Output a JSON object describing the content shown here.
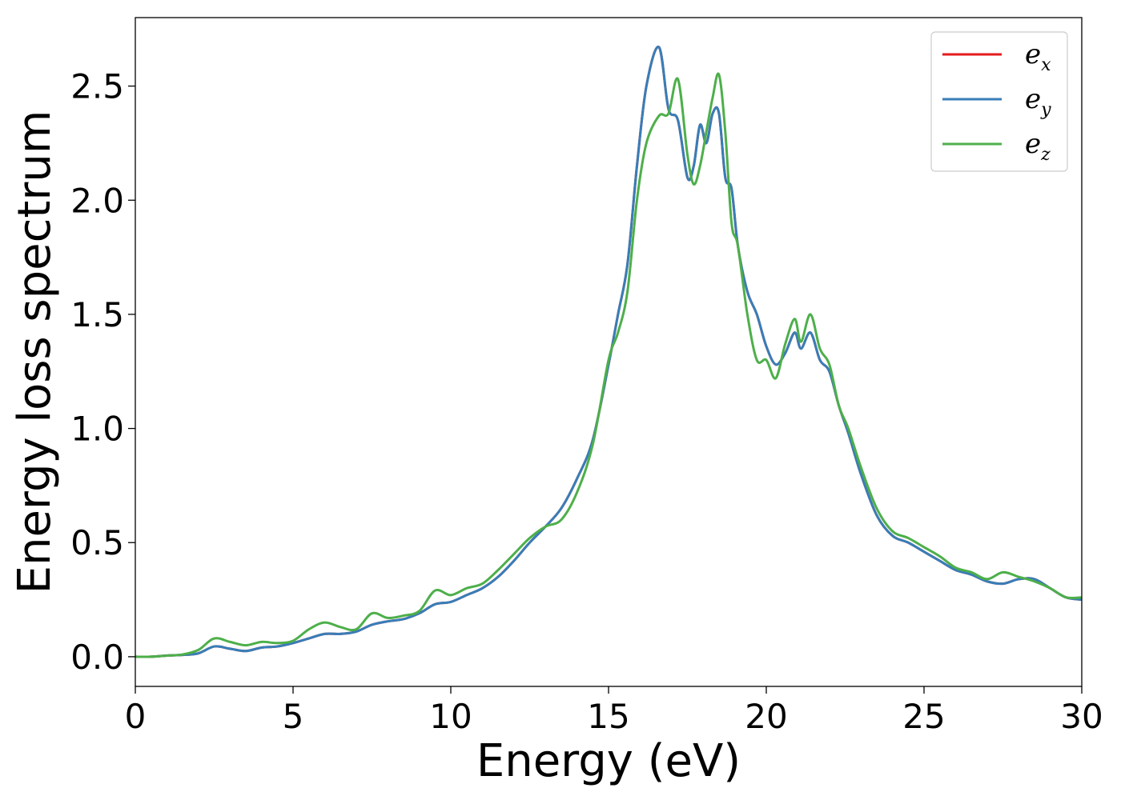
{
  "chart_data": {
    "type": "line",
    "title": "",
    "xlabel": "Energy (eV)",
    "ylabel": "Energy loss spectrum",
    "xlim": [
      0,
      30
    ],
    "ylim": [
      -0.13,
      2.8
    ],
    "xticks": [
      0,
      5,
      10,
      15,
      20,
      25,
      30
    ],
    "yticks": [
      0.0,
      0.5,
      1.0,
      1.5,
      2.0,
      2.5
    ],
    "xtick_labels": [
      "0",
      "5",
      "10",
      "15",
      "20",
      "25",
      "30"
    ],
    "ytick_labels": [
      "0.0",
      "0.5",
      "1.0",
      "1.5",
      "2.0",
      "2.5"
    ],
    "grid": false,
    "legend_position": "top-right",
    "x": [
      0,
      0.5,
      1.0,
      1.5,
      2.0,
      2.5,
      3.0,
      3.5,
      4.0,
      4.5,
      5.0,
      5.5,
      6.0,
      6.5,
      7.0,
      7.5,
      8.0,
      8.5,
      9.0,
      9.5,
      10.0,
      10.5,
      11.0,
      11.5,
      12.0,
      12.5,
      13.0,
      13.5,
      14.0,
      14.5,
      15.0,
      15.3,
      15.6,
      15.9,
      16.2,
      16.6,
      16.9,
      17.2,
      17.5,
      17.7,
      17.9,
      18.1,
      18.3,
      18.5,
      18.7,
      18.9,
      19.1,
      19.4,
      19.7,
      20.0,
      20.3,
      20.6,
      20.9,
      21.1,
      21.4,
      21.7,
      22.0,
      22.3,
      22.6,
      23.0,
      23.5,
      24.0,
      24.5,
      25.0,
      25.5,
      26.0,
      26.5,
      27.0,
      27.5,
      28.0,
      28.5,
      29.0,
      29.5,
      30.0
    ],
    "series": [
      {
        "name": "e_x",
        "label_base": "e",
        "label_sub": "x",
        "color": "#e41a1c",
        "values": [
          0.0,
          0.0,
          0.005,
          0.008,
          0.015,
          0.045,
          0.035,
          0.025,
          0.04,
          0.045,
          0.06,
          0.08,
          0.1,
          0.1,
          0.11,
          0.14,
          0.155,
          0.165,
          0.19,
          0.23,
          0.24,
          0.27,
          0.3,
          0.35,
          0.42,
          0.5,
          0.57,
          0.65,
          0.78,
          0.95,
          1.28,
          1.5,
          1.72,
          2.15,
          2.5,
          2.67,
          2.4,
          2.35,
          2.1,
          2.15,
          2.33,
          2.25,
          2.38,
          2.38,
          2.1,
          2.05,
          1.8,
          1.6,
          1.5,
          1.36,
          1.28,
          1.33,
          1.42,
          1.35,
          1.42,
          1.3,
          1.25,
          1.1,
          0.98,
          0.8,
          0.62,
          0.53,
          0.5,
          0.46,
          0.42,
          0.38,
          0.36,
          0.33,
          0.32,
          0.34,
          0.34,
          0.3,
          0.26,
          0.25
        ]
      },
      {
        "name": "e_y",
        "label_base": "e",
        "label_sub": "y",
        "color": "#377eb8",
        "values": [
          0.0,
          0.0,
          0.005,
          0.008,
          0.015,
          0.045,
          0.035,
          0.025,
          0.04,
          0.045,
          0.06,
          0.08,
          0.1,
          0.1,
          0.11,
          0.14,
          0.155,
          0.165,
          0.19,
          0.23,
          0.24,
          0.27,
          0.3,
          0.35,
          0.42,
          0.5,
          0.57,
          0.65,
          0.78,
          0.95,
          1.28,
          1.5,
          1.72,
          2.15,
          2.5,
          2.67,
          2.4,
          2.35,
          2.1,
          2.15,
          2.33,
          2.25,
          2.38,
          2.38,
          2.1,
          2.05,
          1.8,
          1.6,
          1.5,
          1.36,
          1.28,
          1.33,
          1.42,
          1.35,
          1.42,
          1.3,
          1.25,
          1.1,
          0.98,
          0.8,
          0.62,
          0.53,
          0.5,
          0.46,
          0.42,
          0.38,
          0.36,
          0.33,
          0.32,
          0.34,
          0.34,
          0.3,
          0.26,
          0.25
        ]
      },
      {
        "name": "e_z",
        "label_base": "e",
        "label_sub": "z",
        "color": "#4daf4a",
        "values": [
          0.0,
          0.0,
          0.005,
          0.01,
          0.03,
          0.08,
          0.065,
          0.05,
          0.065,
          0.06,
          0.07,
          0.12,
          0.15,
          0.13,
          0.12,
          0.19,
          0.17,
          0.18,
          0.2,
          0.29,
          0.27,
          0.3,
          0.32,
          0.38,
          0.45,
          0.52,
          0.57,
          0.6,
          0.72,
          0.93,
          1.3,
          1.42,
          1.6,
          2.0,
          2.25,
          2.37,
          2.38,
          2.53,
          2.2,
          2.07,
          2.15,
          2.3,
          2.45,
          2.55,
          2.3,
          1.9,
          1.8,
          1.5,
          1.3,
          1.3,
          1.22,
          1.37,
          1.48,
          1.38,
          1.5,
          1.35,
          1.28,
          1.1,
          1.0,
          0.83,
          0.65,
          0.55,
          0.52,
          0.48,
          0.44,
          0.39,
          0.37,
          0.34,
          0.37,
          0.35,
          0.33,
          0.3,
          0.26,
          0.26
        ]
      }
    ]
  }
}
